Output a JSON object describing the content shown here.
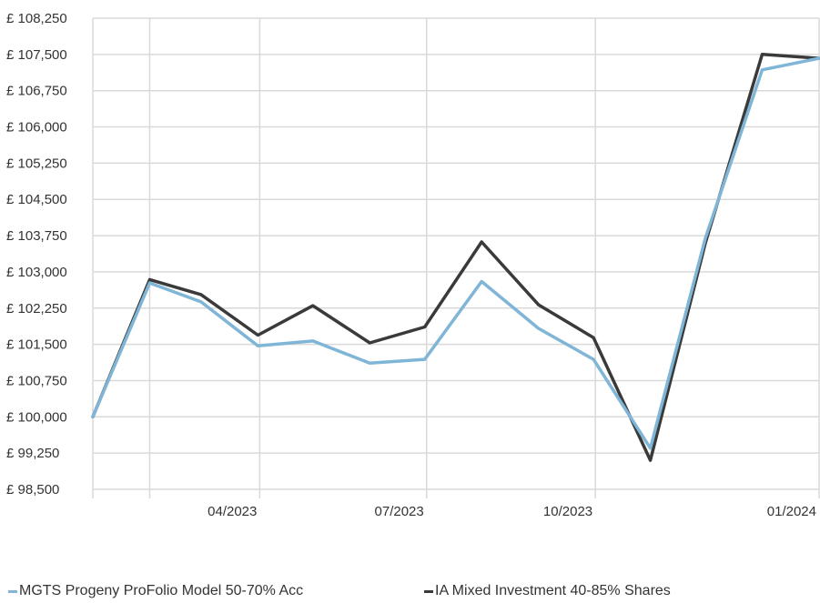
{
  "chart_data": {
    "type": "line",
    "y_ticks": [
      "£ 108,250",
      "£ 107,500",
      "£ 106,750",
      "£ 106,000",
      "£ 105,250",
      "£ 104,500",
      "£ 103,750",
      "£ 103,000",
      "£ 102,250",
      "£ 101,500",
      "£ 100,750",
      "£ 100,000",
      "£ 99,250",
      "£ 98,500"
    ],
    "x_ticks": [
      "04/2023",
      "07/2023",
      "10/2023",
      "01/2024"
    ],
    "ylim": [
      98500,
      108250
    ],
    "x": [
      "2022-12-31",
      "2023-01-31",
      "2023-02-28",
      "2023-03-31",
      "2023-04-30",
      "2023-05-31",
      "2023-06-30",
      "2023-07-31",
      "2023-08-31",
      "2023-09-30",
      "2023-10-31",
      "2023-11-30",
      "2023-12-31",
      "2024-01-31"
    ],
    "series": [
      {
        "name": "MGTS Progeny ProFolio Model 50-70% Acc",
        "color": "#7fb5d6",
        "values": [
          100000,
          102770,
          102380,
          101470,
          101570,
          101110,
          101190,
          102800,
          101830,
          101190,
          99350,
          103700,
          107180,
          107420
        ]
      },
      {
        "name": "IA Mixed Investment 40-85% Shares",
        "color": "#3a3a3a",
        "values": [
          100000,
          102840,
          102530,
          101690,
          102300,
          101530,
          101860,
          103620,
          102320,
          101640,
          99100,
          103600,
          107500,
          107420
        ]
      }
    ],
    "grid": true,
    "legend": "bottom"
  }
}
